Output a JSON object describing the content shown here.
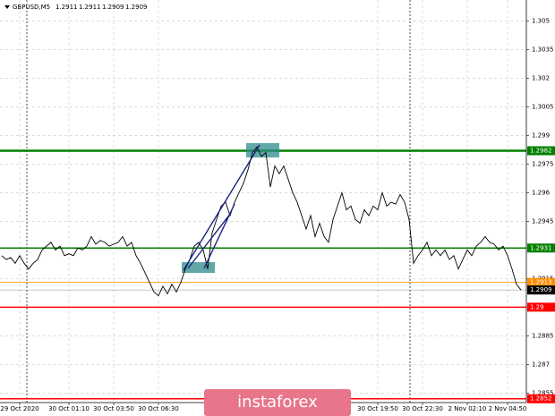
{
  "chart_data": {
    "type": "line",
    "title": "GBPUSD,M5",
    "ohlc": [
      1.2911,
      1.2911,
      1.2909,
      1.2909
    ],
    "categories": [
      null,
      null,
      null,
      null,
      "29 Oct 2020",
      null,
      null,
      null,
      null,
      null,
      null,
      null,
      null,
      null,
      null,
      "30 Oct 01:10",
      null,
      null,
      null,
      null,
      null,
      null,
      null,
      null,
      null,
      "30 Oct 03:50",
      null,
      null,
      null,
      null,
      null,
      null,
      null,
      null,
      null,
      "30 Oct 06:30",
      null,
      null,
      null,
      null,
      null,
      null,
      null,
      null,
      null,
      null,
      null,
      null,
      null,
      null,
      null,
      null,
      null,
      null,
      null,
      null,
      null,
      null,
      null,
      null,
      null,
      null,
      null,
      null,
      null,
      null,
      null,
      null,
      null,
      null,
      null,
      null,
      null,
      null,
      null,
      null,
      null,
      null,
      null,
      null,
      null,
      null,
      null,
      null,
      "30 Oct 19:50",
      null,
      null,
      null,
      null,
      null,
      null,
      null,
      null,
      null,
      "30 Oct 22:30",
      null,
      null,
      null,
      null,
      null,
      null,
      null,
      null,
      null,
      "2 Nov 02:10",
      null,
      null,
      null,
      null,
      null,
      null,
      null,
      null,
      "2 Nov 04:50",
      null,
      null,
      null
    ],
    "series": [
      {
        "color": "#000000",
        "values": [
          1.2927,
          1.2925,
          1.2926,
          1.2923,
          1.2927,
          1.2923,
          1.292,
          1.2923,
          1.2925,
          1.293,
          1.2932,
          1.2934,
          1.293,
          1.2932,
          1.2927,
          1.2928,
          1.2927,
          1.2931,
          1.293,
          1.2932,
          1.2937,
          1.2933,
          1.2935,
          1.2934,
          1.2932,
          1.2933,
          1.2934,
          1.2937,
          1.2932,
          1.2934,
          1.2927,
          1.2923,
          1.2918,
          1.2913,
          1.2908,
          1.2906,
          1.2911,
          1.2907,
          1.2912,
          1.2908,
          1.2913,
          1.292,
          1.2925,
          1.2932,
          1.2934,
          1.293,
          1.292,
          1.2939,
          1.2946,
          1.2953,
          1.2955,
          1.2948,
          1.2955,
          1.296,
          1.2965,
          1.2972,
          1.2981,
          1.2984,
          1.2979,
          1.2981,
          1.2963,
          1.2974,
          1.297,
          1.2974,
          1.2967,
          1.296,
          1.2955,
          1.2948,
          1.2941,
          1.2948,
          1.2937,
          1.2944,
          1.2937,
          1.2934,
          1.2946,
          1.2953,
          1.296,
          1.2951,
          1.2953,
          1.2946,
          1.2944,
          1.2951,
          1.2948,
          1.2953,
          1.2951,
          1.296,
          1.2953,
          1.2955,
          1.2954,
          1.2959,
          1.2955,
          1.2946,
          1.2923,
          1.2927,
          1.293,
          1.2934,
          1.2927,
          1.293,
          1.2927,
          1.293,
          1.2925,
          1.2927,
          1.292,
          1.2925,
          1.293,
          1.2927,
          1.2932,
          1.2934,
          1.2937,
          1.2934,
          1.2933,
          1.293,
          1.2932,
          1.2927,
          1.292,
          1.2912,
          1.2909
        ]
      }
    ],
    "ylim": [
      1.285,
      1.3061
    ],
    "yticks": [
      1.305,
      1.3035,
      1.302,
      1.3005,
      1.299,
      1.2975,
      1.296,
      1.2945,
      1.2915,
      1.2885,
      1.287,
      1.2855
    ],
    "grid": true,
    "levels": [
      {
        "value": 1.2982,
        "color": "#008000"
      },
      {
        "value": 1.2931,
        "color": "#008000"
      },
      {
        "value": 1.2913,
        "color": "#ff8c00"
      },
      {
        "value": 1.2909,
        "color": "#000000"
      },
      {
        "value": 1.29,
        "color": "#ff0000"
      },
      {
        "value": 1.2852,
        "color": "#ff0000"
      }
    ],
    "watermark": "instaforex"
  }
}
